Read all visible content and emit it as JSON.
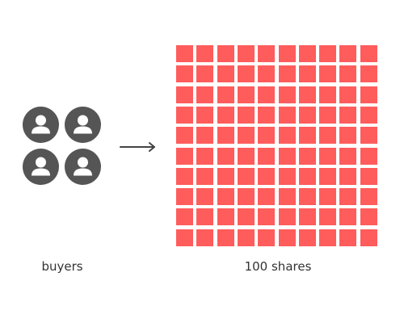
{
  "labels": {
    "buyers": "buyers",
    "shares": "100 shares"
  },
  "buyers": {
    "count": 4,
    "icon": "person-icon",
    "color": "#555555"
  },
  "shares": {
    "count": 100,
    "rows": 10,
    "columns": 10,
    "color": "#FF5C5C"
  },
  "arrow": {
    "icon": "arrow-right-icon",
    "color": "#444444"
  }
}
